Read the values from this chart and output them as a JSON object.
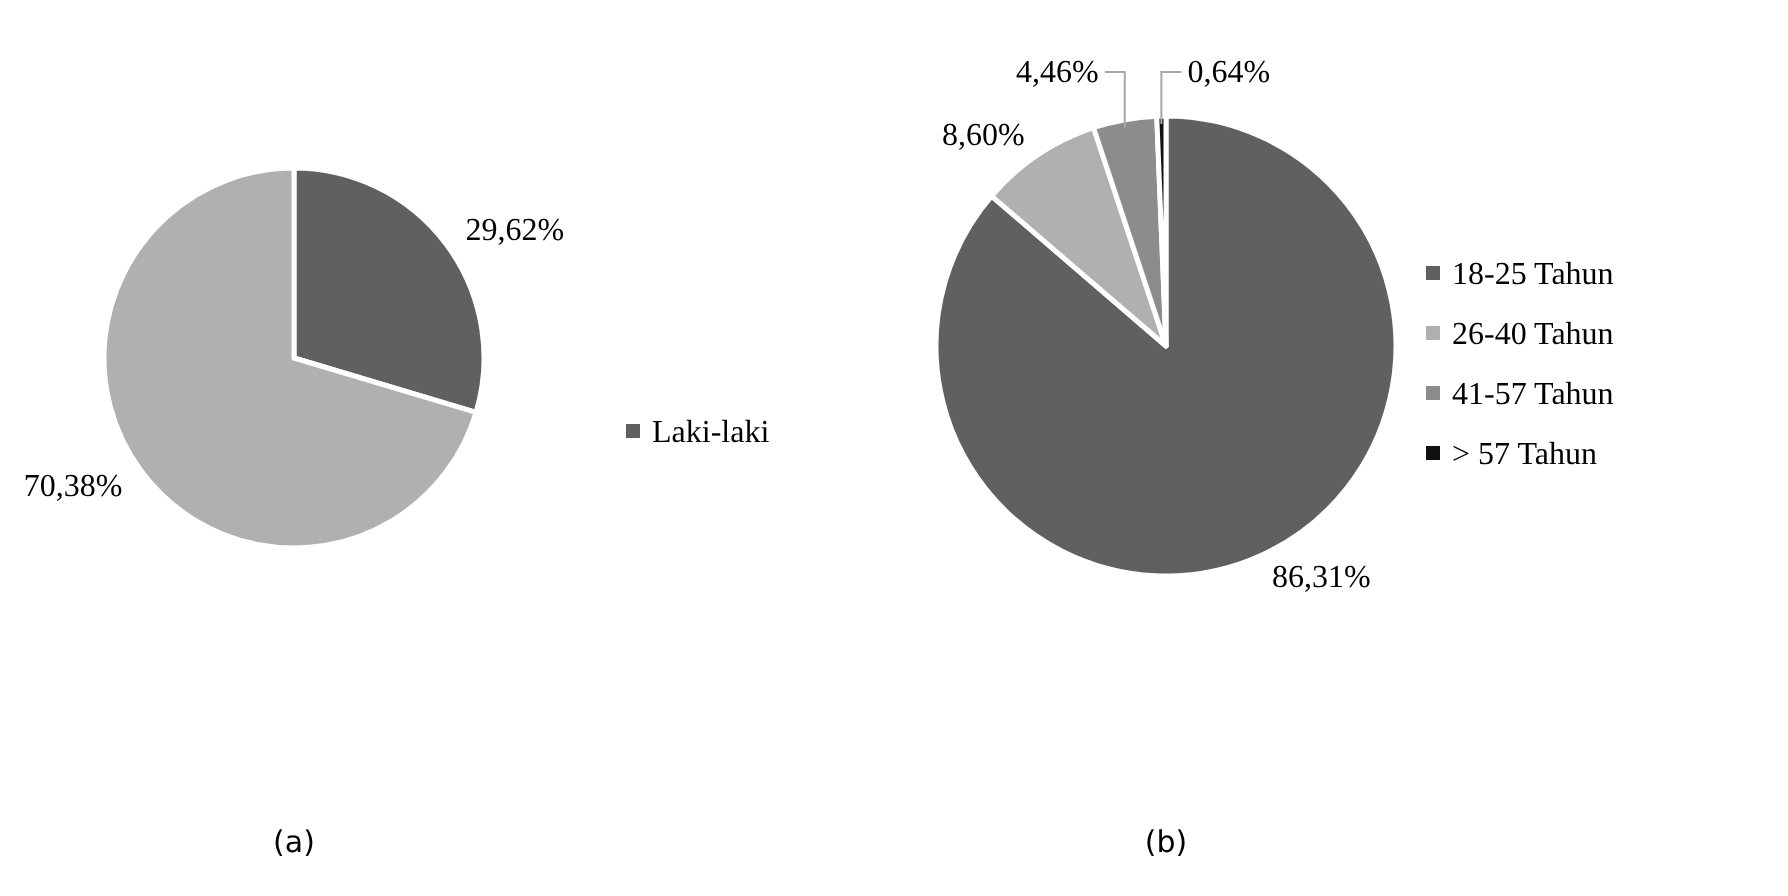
{
  "chart_data": [
    {
      "type": "pie",
      "title": "(a)",
      "categories": [
        "Laki-laki",
        null
      ],
      "values": [
        29.62,
        70.38
      ],
      "colors": [
        "#606060",
        "#b0b0b0"
      ],
      "value_labels": [
        "29,62%",
        "70,38%"
      ],
      "legend": "right"
    },
    {
      "type": "pie",
      "title": "(b)",
      "categories": [
        "18-25 Tahun",
        "26-40 Tahun",
        "41-57 Tahun",
        "> 57 Tahun"
      ],
      "values": [
        86.31,
        8.6,
        4.46,
        0.64
      ],
      "colors": [
        "#606060",
        "#b0b0b0",
        "#8c8c8c",
        "#111111"
      ],
      "value_labels": [
        "86,31%",
        "8,60%",
        "4,46%",
        "0,64%"
      ],
      "legend": "right"
    }
  ]
}
